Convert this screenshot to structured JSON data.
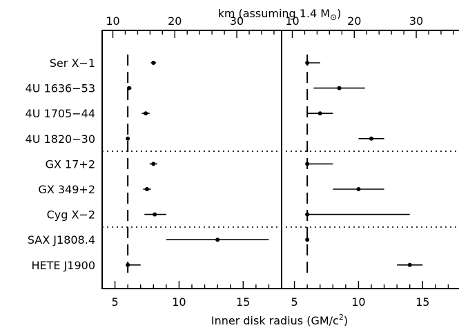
{
  "chart_data": {
    "type": "scatter",
    "xlabel_bottom": "Inner disk radius (GM/c",
    "xlabel_bottom_sup": "2",
    "xlabel_bottom_end": ")",
    "xlabel_top": "km (assuming 1.4 M",
    "xlabel_top_sub": "⊙",
    "xlabel_top_end": ")",
    "sources": [
      "Ser X−1",
      "4U 1636−53",
      "4U 1705−44",
      "4U 1820−30",
      "GX 17+2",
      "GX 349+2",
      "Cyg X−2",
      "SAX J1808.4",
      "HETE J1900"
    ],
    "group_breaks_after": [
      3,
      6
    ],
    "reference_line_x": 6,
    "panels": [
      {
        "xlim": [
          4,
          18
        ],
        "xticks": [
          5,
          10,
          15
        ],
        "xticks_top": [
          10,
          20,
          30
        ],
        "points": [
          {
            "x": 8.0,
            "lo": 7.8,
            "hi": 8.2
          },
          {
            "x": 6.1,
            "lo": 6.0,
            "hi": 6.3
          },
          {
            "x": 7.4,
            "lo": 7.1,
            "hi": 7.7
          },
          {
            "x": 6.0,
            "lo": 6.0,
            "hi": 6.05
          },
          {
            "x": 8.0,
            "lo": 7.7,
            "hi": 8.3
          },
          {
            "x": 7.5,
            "lo": 7.2,
            "hi": 7.8
          },
          {
            "x": 8.1,
            "lo": 7.3,
            "hi": 9.0
          },
          {
            "x": 13.0,
            "lo": 9.0,
            "hi": 17.0
          },
          {
            "x": 6.0,
            "lo": 6.0,
            "hi": 7.0
          }
        ]
      },
      {
        "xlim": [
          4,
          18
        ],
        "xticks": [
          5,
          10,
          15
        ],
        "xticks_top": [
          10,
          20,
          30
        ],
        "points": [
          {
            "x": 6.0,
            "lo": 6.0,
            "hi": 7.0
          },
          {
            "x": 8.5,
            "lo": 6.5,
            "hi": 10.5
          },
          {
            "x": 7.0,
            "lo": 6.0,
            "hi": 8.0
          },
          {
            "x": 11.0,
            "lo": 10.0,
            "hi": 12.0
          },
          {
            "x": 6.0,
            "lo": 6.0,
            "hi": 8.0
          },
          {
            "x": 10.0,
            "lo": 8.0,
            "hi": 12.0
          },
          {
            "x": 6.0,
            "lo": 6.0,
            "hi": 14.0
          },
          {
            "x": 6.0,
            "lo": 5.9,
            "hi": 6.1
          },
          {
            "x": 14.0,
            "lo": 13.0,
            "hi": 15.0
          }
        ]
      }
    ]
  }
}
